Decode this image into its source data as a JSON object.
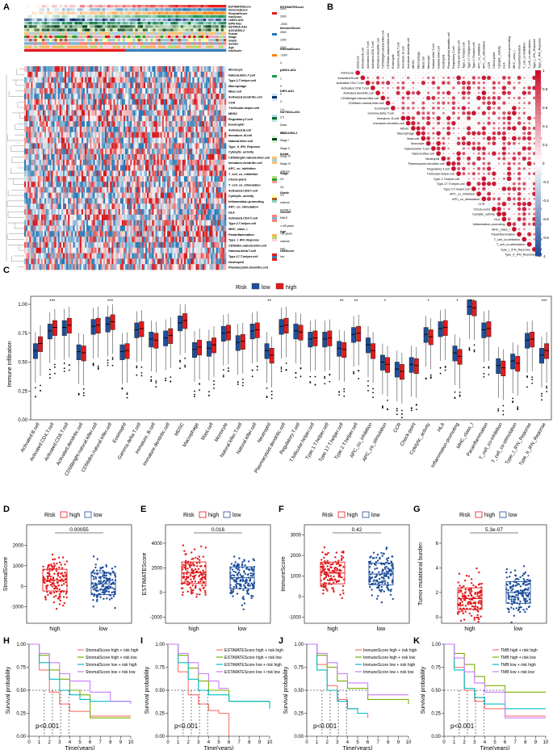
{
  "panels": {
    "A": {
      "letter": "A",
      "row_labels": [
        "Monocyte",
        "Natural.killer.T.cell",
        "Type.1.T.helper.cell",
        "Macrophage",
        "Mast.cell",
        "Activated.dendritic.cell",
        "CCR",
        "T.follicular.helper.cell",
        "MDSC",
        "Regulatory.T.cell",
        "Eosinophil",
        "Activated.B.cell",
        "Immature..B.cell",
        "Natural.killer.cell",
        "Type_II_IFN_Reponse",
        "Cytolytic_activity",
        "CD56bright.natural.killer.cell",
        "Immature.dendritic.cell",
        "APC_co_inhibition",
        "T_cell_co_inhibition",
        "Check-point",
        "T_cell_co_stimulation",
        "Activated.CD8.T.cell",
        "Cytolytic_activity",
        "Inflammation-promoting",
        "APC_co_stimulation",
        "HLA",
        "Activated.CD4.T.cell",
        "Type.2.T.helper.cell",
        "MHC_class_I",
        "Parainflammation",
        "Type_I_IFN_Reponse",
        "CD56dim.natural.killer.cell",
        "Gamma.delta.T.cell",
        "Type.17.T.helper.cell",
        "Neutrophil",
        "Plasmacytoid.dendritic.cell"
      ],
      "track_labels": [
        "ESTIMATEScore",
        "ImmuneScore",
        "StromalScore",
        "riskScore",
        "LIMS1-AS1",
        "DIP6-AS1",
        "NUTM2A-AS1",
        "AC016394.2",
        "Fustat",
        "Stage",
        "Grade",
        "Gender",
        "Age",
        "riskScore"
      ],
      "legend_titles": [
        "ESTIMATEScore",
        "ImmuneScore",
        "StromalScore",
        "LIMS1-AS1",
        "DIP6-AS1",
        "NUTM2A-AS1",
        "AC016394.2",
        "fustat",
        "Stage",
        "Grade",
        "Gender",
        "Age",
        "riskScore"
      ],
      "legend_values": [
        "4000",
        "2000",
        "-2000",
        "3000",
        "1000",
        "2000",
        "-1000",
        "3",
        "2",
        "1",
        "0",
        "0",
        "3",
        "1.5",
        "0.5",
        "Dead",
        "alive",
        "Stage I",
        "Stage II",
        "Stage III",
        "Stage IV",
        "unknow",
        "G1",
        "G2",
        "G3",
        "unknow",
        "FEMALE",
        "MALE",
        "<=65 years",
        ">65 years",
        "unknow",
        "high",
        "low"
      ]
    },
    "B": {
      "letter": "B",
      "labels": [
        "riskScore",
        "Activated.B.cell",
        "Activated.CD4.T.cell",
        "Activated.CD8.T.cell",
        "Activated.dendritic.cell",
        "CD56bright.natural.killer.cell",
        "CD56dim.natural.killer.cell",
        "Eosinophil",
        "Gamma.delta.T.cell",
        "Immature..B.cell",
        "Immature.dendritic.cell",
        "MDSC",
        "Macrophage",
        "Mast.cell",
        "Monocyte",
        "Natural.killer.T.cell",
        "Natural.killer.cell",
        "Neutrophil",
        "Plasmacytoid.dendritic.cell",
        "Regulatory.T.cell",
        "T.follicular.helper.cell",
        "Type.1.T.helper.cell",
        "Type.17.T.helper.cell",
        "Type.2.T.helper.cell",
        "APC_co_inhibition",
        "APC_co_stimulation",
        "CCR",
        "Check-point",
        "Cytolytic_activity",
        "HLA",
        "Inflammation-promoting",
        "MHC_class_I",
        "Parainflammation",
        "T_cell_co-inhibition",
        "T_cell_co-stimulation",
        "Type_I_IFN_Reponse",
        "Type_II_IFN_Reponse"
      ],
      "colorbar_ticks": [
        "1",
        "0.8",
        "0.6",
        "0.4",
        "0.2",
        "0",
        "-0.2",
        "-0.4",
        "-0.6",
        "-0.8",
        "-1"
      ]
    },
    "C": {
      "letter": "C",
      "legend_title": "Risk",
      "legend": [
        "low",
        "high"
      ],
      "ylabel": "Immune infiltration",
      "yticks": [
        "0.00",
        "0.25",
        "0.50",
        "0.75",
        "1.00"
      ],
      "categories": [
        "Activated.B.cell",
        "Activated.CD4.T.cell",
        "Activated.CD8.T.cell",
        "Activated.dendritic.cell",
        "CD56bright.natural.killer.cell",
        "CD56dim.natural.killer.cell",
        "Eosinophil",
        "Gamma.delta.T.cell",
        "Immature..B.cell",
        "Immature.dendritic.cell",
        "MDSC",
        "Macrophage",
        "Mast.cell",
        "Monocyte",
        "Natural.killer.T.cell",
        "Natural.killer.cell",
        "Neutrophil",
        "Plasmacytoid.dendritic.cell",
        "Regulatory.T.cell",
        "T.follicular.helper.cell",
        "Type.1.T.helper.cell",
        "Type.17.T.helper.cell",
        "Type.2.T.helper.cell",
        "APC_co_inhibition",
        "APC_co_stimulation",
        "CCR",
        "Check-point",
        "Cytolytic_activity",
        "HLA",
        "Inflammation-promoting",
        "MHC_class_I",
        "Parainflammation",
        "T_cell_co-inhibition",
        "T_cell_co-stimulation",
        "Type_I_IFN_Reponse",
        "Type_II_IFN_Reponse"
      ],
      "signif": [
        "",
        "***",
        "",
        "",
        "",
        "***",
        "",
        "",
        "",
        "",
        "",
        "",
        "",
        "",
        "",
        "",
        "**",
        "",
        "",
        "",
        "",
        "**",
        "**",
        "",
        "*",
        "",
        "",
        "*",
        "",
        "*",
        "***",
        "",
        "",
        "",
        "",
        "***"
      ]
    },
    "D": {
      "letter": "D",
      "legend_title": "Risk",
      "legend": [
        "high",
        "low"
      ],
      "ylabel": "StromalScore",
      "yticks": [
        "-1000",
        "0",
        "1000",
        "2000"
      ],
      "xticks": [
        "high",
        "low"
      ],
      "pvalue": "0.00055"
    },
    "E": {
      "letter": "E",
      "legend_title": "Risk",
      "legend": [
        "high",
        "low"
      ],
      "ylabel": "ESTIMATEScore",
      "yticks": [
        "-2000",
        "0",
        "2000",
        "4000"
      ],
      "xticks": [
        "high",
        "low"
      ],
      "pvalue": "0.016"
    },
    "F": {
      "letter": "F",
      "legend_title": "Risk",
      "legend": [
        "high",
        "low"
      ],
      "ylabel": "ImmuneScore",
      "yticks": [
        "-1000",
        "0",
        "1000",
        "2000",
        "3000"
      ],
      "xticks": [
        "high",
        "low"
      ],
      "pvalue": "0.42"
    },
    "G": {
      "letter": "G",
      "legend_title": "Risk",
      "legend": [
        "high",
        "low"
      ],
      "ylabel": "Tumor mutational burden",
      "yticks": [
        "0",
        "2",
        "4",
        "6"
      ],
      "xticks": [
        "high",
        "low"
      ],
      "pvalue": "5.3e-07"
    },
    "H": {
      "letter": "H",
      "ylabel": "Survival probability",
      "xlabel": "Time(years)",
      "yticks": [
        "0.00",
        "0.25",
        "0.50",
        "0.75",
        "1.00"
      ],
      "xticks": [
        "0",
        "1",
        "2",
        "3",
        "4",
        "5",
        "6",
        "7",
        "8",
        "9",
        "10"
      ],
      "pvalue": "p<0.001",
      "legend": [
        "StromalScore high + risk high",
        "StromalScore high + risk low",
        "StromalScore low + risk high",
        "StromalScore low + risk low"
      ]
    },
    "I": {
      "letter": "I",
      "ylabel": "Survival probability",
      "xlabel": "Time(years)",
      "yticks": [
        "0.00",
        "0.25",
        "0.50",
        "0.75",
        "1.00"
      ],
      "xticks": [
        "0",
        "1",
        "2",
        "3",
        "4",
        "5",
        "6",
        "7",
        "8",
        "9",
        "10"
      ],
      "pvalue": "p<0.001",
      "legend": [
        "ESTIMATEScore high + risk high",
        "ESTIMATEScore high + risk low",
        "ESTIMATEScore low + risk high",
        "ESTIMATEScore low + risk low"
      ]
    },
    "J": {
      "letter": "J",
      "ylabel": "Survival probability",
      "xlabel": "Time(years)",
      "yticks": [
        "0.00",
        "0.25",
        "0.50",
        "0.75",
        "1.00"
      ],
      "xticks": [
        "0",
        "1",
        "2",
        "3",
        "4",
        "5",
        "6",
        "7",
        "8",
        "9",
        "10"
      ],
      "pvalue": "p<0.001",
      "legend": [
        "ImmuneScore high + risk high",
        "ImmuneScore high + risk low",
        "ImmuneScore low + risk high",
        "ImmuneScore low + risk low"
      ]
    },
    "K": {
      "letter": "K",
      "ylabel": "Survival probability",
      "xlabel": "Time(years)",
      "yticks": [
        "0.00",
        "0.25",
        "0.50",
        "0.75",
        "1.00"
      ],
      "xticks": [
        "0",
        "1",
        "2",
        "3",
        "4",
        "5",
        "6",
        "7",
        "8",
        "9",
        "10"
      ],
      "pvalue": "p<0.001",
      "legend": [
        "TMB high + risk high",
        "TMB high + risk low",
        "TMB low + risk high",
        "TMB low + risk low"
      ]
    }
  },
  "colors": {
    "high": "#e41a1c",
    "low": "#1f4e9c",
    "km": [
      "#f8766d",
      "#7cae00",
      "#00bfc4",
      "#c77cff"
    ],
    "heat_hi": "#d7191c",
    "heat_lo": "#2c7bb6"
  },
  "chart_data": [
    {
      "type": "box",
      "panel": "C",
      "ylim": [
        0,
        1
      ],
      "series": [
        {
          "name": "low",
          "medians": [
            0.6,
            0.77,
            0.8,
            0.59,
            0.81,
            0.83,
            0.59,
            0.78,
            0.7,
            0.71,
            0.84,
            0.61,
            0.62,
            0.75,
            0.67,
            0.77,
            0.6,
            0.81,
            0.77,
            0.7,
            0.7,
            0.62,
            0.74,
            0.65,
            0.5,
            0.44,
            0.48,
            0.74,
            0.79,
            0.58,
            0.98,
            0.78,
            0.47,
            0.51,
            0.69,
            0.56
          ]
        },
        {
          "name": "high",
          "medians": [
            0.66,
            0.8,
            0.82,
            0.58,
            0.82,
            0.85,
            0.6,
            0.79,
            0.69,
            0.73,
            0.86,
            0.63,
            0.65,
            0.76,
            0.68,
            0.78,
            0.56,
            0.82,
            0.76,
            0.71,
            0.71,
            0.61,
            0.75,
            0.6,
            0.48,
            0.42,
            0.47,
            0.72,
            0.8,
            0.55,
            0.97,
            0.79,
            0.45,
            0.49,
            0.7,
            0.6
          ]
        }
      ]
    },
    {
      "type": "box",
      "panel": "D",
      "categories": [
        "high",
        "low"
      ],
      "values": [
        300,
        120
      ],
      "ylim": [
        -1800,
        3000
      ]
    },
    {
      "type": "box",
      "panel": "E",
      "categories": [
        "high",
        "low"
      ],
      "values": [
        1600,
        1200
      ],
      "ylim": [
        -2500,
        5500
      ]
    },
    {
      "type": "box",
      "panel": "F",
      "categories": [
        "high",
        "low"
      ],
      "values": [
        1150,
        1100
      ],
      "ylim": [
        -1300,
        3500
      ]
    },
    {
      "type": "box",
      "panel": "G",
      "categories": [
        "high",
        "low"
      ],
      "values": [
        1.5,
        2.0
      ],
      "ylim": [
        -0.5,
        7.5
      ]
    },
    {
      "type": "line",
      "panel": "H",
      "x_range": [
        0,
        10
      ],
      "ylim": [
        0,
        1
      ],
      "series": [
        {
          "name": "StromalScore high + risk high",
          "x": [
            0,
            1,
            2,
            3,
            4,
            6,
            10
          ],
          "y": [
            1,
            0.72,
            0.48,
            0.35,
            0.27,
            0.22,
            0.22
          ]
        },
        {
          "name": "StromalScore high + risk low",
          "x": [
            0,
            1,
            2,
            3,
            4,
            5,
            6,
            10
          ],
          "y": [
            1,
            0.88,
            0.72,
            0.62,
            0.5,
            0.45,
            0.2,
            0.2
          ]
        },
        {
          "name": "StromalScore low + risk high",
          "x": [
            0,
            1,
            2,
            3,
            4,
            5,
            6,
            10
          ],
          "y": [
            1,
            0.8,
            0.62,
            0.5,
            0.45,
            0.4,
            0.38,
            0.38
          ]
        },
        {
          "name": "StromalScore low + risk low",
          "x": [
            0,
            1,
            2,
            3,
            4,
            6,
            8,
            10
          ],
          "y": [
            1,
            0.9,
            0.8,
            0.68,
            0.6,
            0.48,
            0.38,
            0.35
          ]
        }
      ]
    },
    {
      "type": "line",
      "panel": "I",
      "x_range": [
        0,
        10
      ],
      "ylim": [
        0,
        1
      ],
      "series": [
        {
          "name": "ESTIMATEScore high + risk high",
          "x": [
            0,
            1,
            2,
            3,
            4,
            5,
            6
          ],
          "y": [
            1,
            0.7,
            0.45,
            0.35,
            0.28,
            0.25,
            0.0
          ]
        },
        {
          "name": "ESTIMATEScore high + risk low",
          "x": [
            0,
            1,
            2,
            3,
            4,
            6,
            10
          ],
          "y": [
            1,
            0.88,
            0.74,
            0.6,
            0.5,
            0.38,
            0.35
          ]
        },
        {
          "name": "ESTIMATEScore low + risk high",
          "x": [
            0,
            1,
            2,
            3,
            4,
            6,
            10
          ],
          "y": [
            1,
            0.8,
            0.62,
            0.5,
            0.45,
            0.38,
            0.3
          ]
        },
        {
          "name": "ESTIMATEScore low + risk low",
          "x": [
            0,
            1,
            2,
            3,
            4,
            5,
            6
          ],
          "y": [
            1,
            0.9,
            0.8,
            0.68,
            0.6,
            0.52,
            0.52
          ]
        }
      ]
    },
    {
      "type": "line",
      "panel": "J",
      "x_range": [
        0,
        10
      ],
      "ylim": [
        0,
        1
      ],
      "series": [
        {
          "name": "ImmuneScore high + risk high",
          "x": [
            0,
            1,
            2,
            3,
            4,
            5,
            6
          ],
          "y": [
            1,
            0.78,
            0.55,
            0.4,
            0.3,
            0.25,
            0.2
          ]
        },
        {
          "name": "ImmuneScore high + risk low",
          "x": [
            0,
            1,
            2,
            3,
            4,
            6,
            10
          ],
          "y": [
            1,
            0.88,
            0.75,
            0.6,
            0.52,
            0.4,
            0.35
          ]
        },
        {
          "name": "ImmuneScore low + risk high",
          "x": [
            0,
            1,
            2,
            3,
            4,
            5,
            6
          ],
          "y": [
            1,
            0.72,
            0.5,
            0.38,
            0.3,
            0.25,
            0.25
          ]
        },
        {
          "name": "ImmuneScore low + risk low",
          "x": [
            0,
            1,
            2,
            3,
            4,
            6,
            10
          ],
          "y": [
            1,
            0.9,
            0.8,
            0.68,
            0.58,
            0.45,
            0.45
          ]
        }
      ]
    },
    {
      "type": "line",
      "panel": "K",
      "x_range": [
        0,
        10
      ],
      "ylim": [
        0,
        1
      ],
      "series": [
        {
          "name": "TMB high + risk high",
          "x": [
            0,
            1,
            2,
            3,
            4,
            6,
            10
          ],
          "y": [
            1,
            0.75,
            0.5,
            0.38,
            0.3,
            0.22,
            0.22
          ]
        },
        {
          "name": "TMB high + risk low",
          "x": [
            0,
            1,
            2,
            3,
            4,
            6,
            10
          ],
          "y": [
            1,
            0.9,
            0.78,
            0.65,
            0.55,
            0.48,
            0.48
          ]
        },
        {
          "name": "TMB low + risk high",
          "x": [
            0,
            1,
            2,
            3,
            4,
            6,
            10
          ],
          "y": [
            1,
            0.72,
            0.52,
            0.42,
            0.35,
            0.3,
            0.3
          ]
        },
        {
          "name": "TMB low + risk low",
          "x": [
            0,
            1,
            2,
            3,
            4,
            6,
            10
          ],
          "y": [
            1,
            0.85,
            0.7,
            0.58,
            0.48,
            0.2,
            0.2
          ]
        }
      ]
    }
  ]
}
